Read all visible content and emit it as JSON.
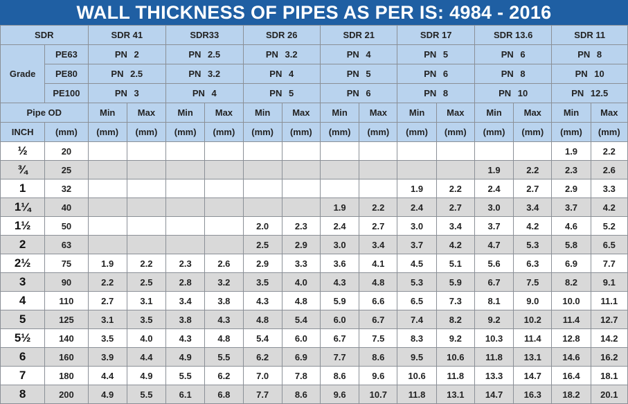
{
  "title": "WALL THICKNESS OF PIPES AS PER IS: 4984 - 2016",
  "sdr_label": "SDR",
  "sdr_values": [
    "SDR 41",
    "SDR33",
    "SDR 26",
    "SDR 21",
    "SDR 17",
    "SDR 13.6",
    "SDR 11"
  ],
  "grade_label": "Grade",
  "grades": [
    {
      "name": "PE63",
      "pn": [
        "PN  2",
        "PN  2.5",
        "PN  3.2",
        "PN  4",
        "PN  5",
        "PN  6",
        "PN  8"
      ]
    },
    {
      "name": "PE80",
      "pn": [
        "PN  2.5",
        "PN  3.2",
        "PN  4",
        "PN  5",
        "PN  6",
        "PN  8",
        "PN  10"
      ]
    },
    {
      "name": "PE100",
      "pn": [
        "PN 3",
        "PN  4",
        "PN  5",
        "PN  6",
        "PN  8",
        "PN  10",
        "PN  12.5"
      ]
    }
  ],
  "pipe_od_label": "Pipe OD",
  "min_label": "Min",
  "max_label": "Max",
  "inch_label": "INCH",
  "mm_label": "(mm)",
  "rows": [
    {
      "inch": "½",
      "od": "20",
      "vals": [
        "",
        "",
        "",
        "",
        "",
        "",
        "",
        "",
        "",
        "",
        "",
        "",
        "1.9",
        "2.2"
      ]
    },
    {
      "inch": "¾",
      "od": "25",
      "vals": [
        "",
        "",
        "",
        "",
        "",
        "",
        "",
        "",
        "",
        "",
        "1.9",
        "2.2",
        "2.3",
        "2.6"
      ]
    },
    {
      "inch": "1",
      "od": "32",
      "vals": [
        "",
        "",
        "",
        "",
        "",
        "",
        "",
        "",
        "1.9",
        "2.2",
        "2.4",
        "2.7",
        "2.9",
        "3.3"
      ]
    },
    {
      "inch": "1¼",
      "od": "40",
      "vals": [
        "",
        "",
        "",
        "",
        "",
        "",
        "1.9",
        "2.2",
        "2.4",
        "2.7",
        "3.0",
        "3.4",
        "3.7",
        "4.2"
      ]
    },
    {
      "inch": "1½",
      "od": "50",
      "vals": [
        "",
        "",
        "",
        "",
        "2.0",
        "2.3",
        "2.4",
        "2.7",
        "3.0",
        "3.4",
        "3.7",
        "4.2",
        "4.6",
        "5.2"
      ]
    },
    {
      "inch": "2",
      "od": "63",
      "vals": [
        "",
        "",
        "",
        "",
        "2.5",
        "2.9",
        "3.0",
        "3.4",
        "3.7",
        "4.2",
        "4.7",
        "5.3",
        "5.8",
        "6.5"
      ]
    },
    {
      "inch": "2½",
      "od": "75",
      "vals": [
        "1.9",
        "2.2",
        "2.3",
        "2.6",
        "2.9",
        "3.3",
        "3.6",
        "4.1",
        "4.5",
        "5.1",
        "5.6",
        "6.3",
        "6.9",
        "7.7"
      ]
    },
    {
      "inch": "3",
      "od": "90",
      "vals": [
        "2.2",
        "2.5",
        "2.8",
        "3.2",
        "3.5",
        "4.0",
        "4.3",
        "4.8",
        "5.3",
        "5.9",
        "6.7",
        "7.5",
        "8.2",
        "9.1"
      ]
    },
    {
      "inch": "4",
      "od": "110",
      "vals": [
        "2.7",
        "3.1",
        "3.4",
        "3.8",
        "4.3",
        "4.8",
        "5.9",
        "6.6",
        "6.5",
        "7.3",
        "8.1",
        "9.0",
        "10.0",
        "11.1"
      ]
    },
    {
      "inch": "5",
      "od": "125",
      "vals": [
        "3.1",
        "3.5",
        "3.8",
        "4.3",
        "4.8",
        "5.4",
        "6.0",
        "6.7",
        "7.4",
        "8.2",
        "9.2",
        "10.2",
        "11.4",
        "12.7"
      ]
    },
    {
      "inch": "5½",
      "od": "140",
      "vals": [
        "3.5",
        "4.0",
        "4.3",
        "4.8",
        "5.4",
        "6.0",
        "6.7",
        "7.5",
        "8.3",
        "9.2",
        "10.3",
        "11.4",
        "12.8",
        "14.2"
      ]
    },
    {
      "inch": "6",
      "od": "160",
      "vals": [
        "3.9",
        "4.4",
        "4.9",
        "5.5",
        "6.2",
        "6.9",
        "7.7",
        "8.6",
        "9.5",
        "10.6",
        "11.8",
        "13.1",
        "14.6",
        "16.2"
      ]
    },
    {
      "inch": "7",
      "od": "180",
      "vals": [
        "4.4",
        "4.9",
        "5.5",
        "6.2",
        "7.0",
        "7.8",
        "8.6",
        "9.6",
        "10.6",
        "11.8",
        "13.3",
        "14.7",
        "16.4",
        "18.1"
      ]
    },
    {
      "inch": "8",
      "od": "200",
      "vals": [
        "4.9",
        "5.5",
        "6.1",
        "6.8",
        "7.7",
        "8.6",
        "9.6",
        "10.7",
        "11.8",
        "13.1",
        "14.7",
        "16.3",
        "18.2",
        "20.1"
      ]
    }
  ],
  "colors": {
    "title_bg": "#1f5fa3",
    "header_bg": "#b9d3ee",
    "shade_bg": "#d9d9d9"
  }
}
